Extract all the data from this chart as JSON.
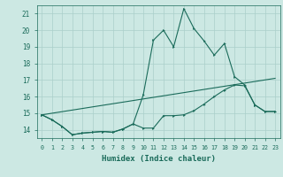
{
  "title": "",
  "xlabel": "Humidex (Indice chaleur)",
  "xlim": [
    -0.5,
    23.5
  ],
  "ylim": [
    13.5,
    21.5
  ],
  "yticks": [
    14,
    15,
    16,
    17,
    18,
    19,
    20,
    21
  ],
  "xticks": [
    0,
    1,
    2,
    3,
    4,
    5,
    6,
    7,
    8,
    9,
    10,
    11,
    12,
    13,
    14,
    15,
    16,
    17,
    18,
    19,
    20,
    21,
    22,
    23
  ],
  "bg_color": "#cce8e3",
  "grid_color": "#aacfca",
  "line_color": "#1a6b5a",
  "line1_x": [
    0,
    1,
    2,
    3,
    4,
    5,
    6,
    7,
    8,
    9,
    10,
    11,
    12,
    13,
    14,
    15,
    16,
    17,
    18,
    19,
    20,
    21,
    22,
    23
  ],
  "line1_y": [
    14.9,
    14.6,
    14.2,
    13.7,
    13.8,
    13.85,
    13.9,
    13.85,
    14.05,
    14.35,
    14.1,
    14.1,
    14.85,
    14.85,
    14.9,
    15.15,
    15.55,
    16.0,
    16.4,
    16.7,
    16.65,
    15.5,
    15.1,
    15.1
  ],
  "line2_x": [
    0,
    1,
    2,
    3,
    4,
    5,
    6,
    7,
    8,
    9,
    10,
    11,
    12,
    13,
    14,
    15,
    16,
    17,
    18,
    19,
    20,
    21,
    22,
    23
  ],
  "line2_y": [
    14.9,
    14.6,
    14.2,
    13.7,
    13.8,
    13.85,
    13.9,
    13.85,
    14.05,
    14.35,
    16.1,
    19.4,
    20.0,
    19.0,
    21.3,
    20.1,
    19.35,
    18.5,
    19.2,
    17.2,
    16.7,
    15.5,
    15.1,
    15.1
  ],
  "line3_x": [
    0,
    23
  ],
  "line3_y": [
    14.9,
    17.1
  ]
}
